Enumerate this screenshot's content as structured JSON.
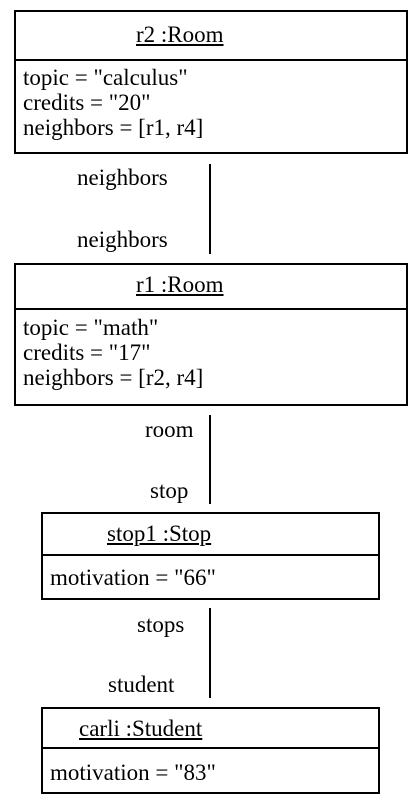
{
  "objects": {
    "r2": {
      "title": "r2 :Room",
      "attributes": [
        "topic = \"calculus\"",
        "credits = \"20\"",
        "neighbors = [r1, r4]"
      ]
    },
    "r1": {
      "title": "r1 :Room",
      "attributes": [
        "topic = \"math\"",
        "credits = \"17\"",
        "neighbors = [r2, r4]"
      ]
    },
    "stop1": {
      "title": "stop1 :Stop",
      "attributes": [
        "motivation = \"66\""
      ]
    },
    "carli": {
      "title": "carli :Student",
      "attributes": [
        "motivation = \"83\""
      ]
    }
  },
  "links": {
    "r2_r1": {
      "source_role": "neighbors",
      "target_role": "neighbors"
    },
    "r1_stop1": {
      "source_role": "room",
      "target_role": "stop"
    },
    "stop1_carli": {
      "source_role": "stops",
      "target_role": "student"
    }
  }
}
